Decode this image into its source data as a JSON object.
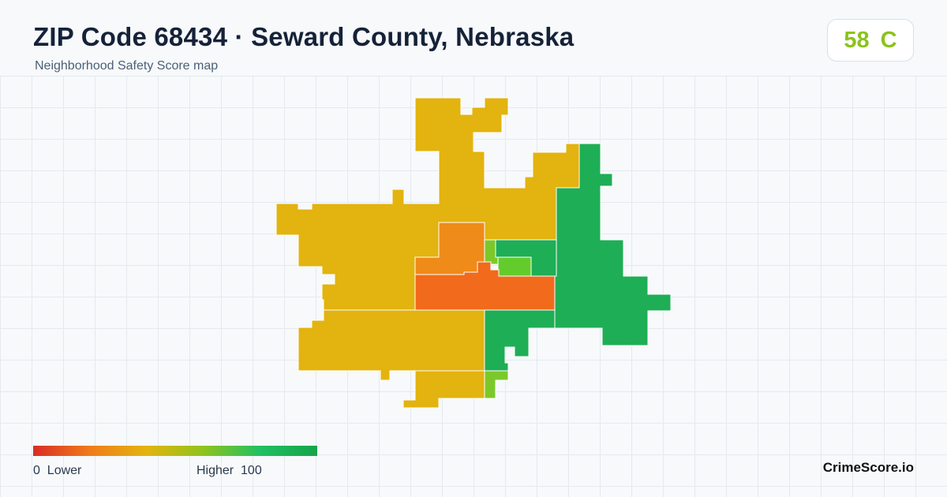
{
  "header": {
    "title": "ZIP Code 68434 · Seward County, Nebraska",
    "subtitle": "Neighborhood Safety Score map"
  },
  "score": {
    "value": "58",
    "grade": "C",
    "color": "#8cc31c"
  },
  "map": {
    "regions": [
      {
        "name": "north-west-area",
        "color": "#e3b30f"
      },
      {
        "name": "south-west-area",
        "color": "#e3b30f"
      },
      {
        "name": "south-central-area",
        "color": "#e3b30f"
      },
      {
        "name": "central-north-area",
        "color": "#ef8b18"
      },
      {
        "name": "central-area",
        "color": "#f26a1b"
      },
      {
        "name": "narrow-north-strip-area",
        "color": "#7cc82a"
      },
      {
        "name": "north-central-small-area",
        "color": "#63cc2c"
      },
      {
        "name": "north-central-green-area",
        "color": "#1eae55"
      },
      {
        "name": "east-area",
        "color": "#1eae55"
      },
      {
        "name": "south-east-area",
        "color": "#1eae55"
      },
      {
        "name": "south-small-area",
        "color": "#7cc82a"
      }
    ]
  },
  "legend": {
    "min_label": "0  Lower",
    "max_label": "Higher  100",
    "colors": [
      "#d92c26",
      "#f07c1a",
      "#e3b40f",
      "#8fc31e",
      "#21c062",
      "#16a34a"
    ]
  },
  "brand": "CrimeScore.io"
}
